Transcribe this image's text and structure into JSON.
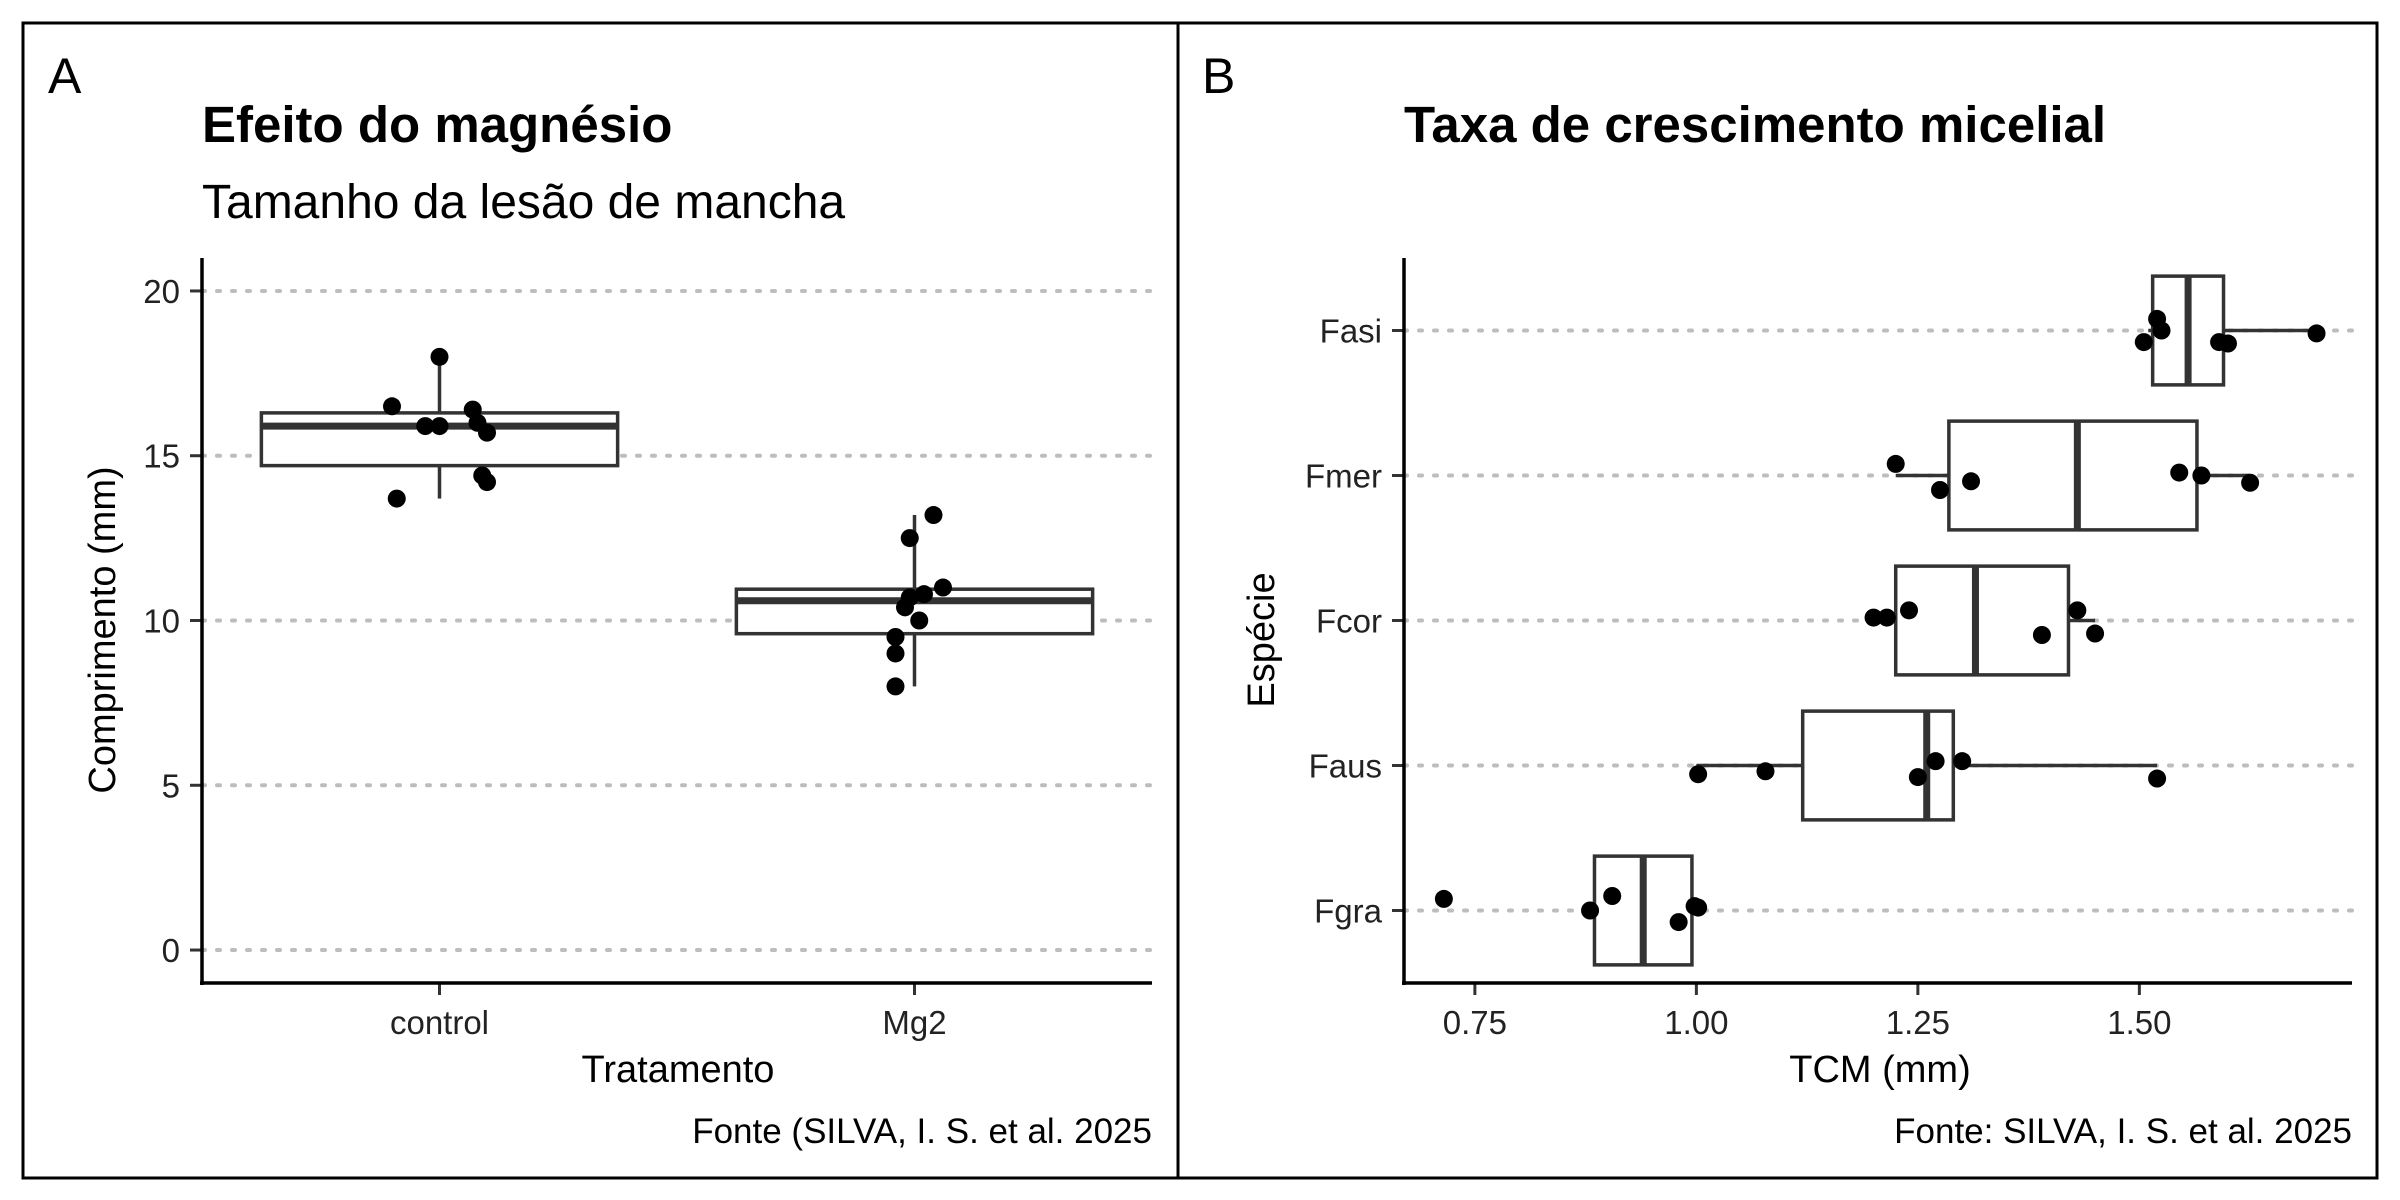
{
  "chart_data": [
    {
      "panel_tag": "A",
      "type": "box",
      "orientation": "vertical",
      "title": "Efeito do magnésio",
      "subtitle": "Tamanho da lesão de mancha",
      "xlabel": "Tratamento",
      "ylabel": "Comprimento (mm)",
      "caption": "Fonte (SILVA, I. S. et al. 2025",
      "ylim": [
        -1,
        21
      ],
      "yticks": [
        0,
        5,
        10,
        15,
        20
      ],
      "ytick_labels": [
        "0",
        "5",
        "10",
        "15",
        "20"
      ],
      "grid": "major y, dotted",
      "categories": [
        "control",
        "Mg2"
      ],
      "boxes": [
        {
          "category": "control",
          "whisker_low": 13.7,
          "q1": 14.7,
          "median": 15.9,
          "q3": 16.3,
          "whisker_high": 18.0
        },
        {
          "category": "Mg2",
          "whisker_low": 8.0,
          "q1": 9.6,
          "median": 10.6,
          "q3": 10.95,
          "whisker_high": 13.2
        }
      ],
      "points": [
        {
          "category": "control",
          "jitter": -0.1,
          "y": 16.5
        },
        {
          "category": "control",
          "jitter": -0.03,
          "y": 15.9
        },
        {
          "category": "control",
          "jitter": 0.0,
          "y": 15.9
        },
        {
          "category": "control",
          "jitter": 0.0,
          "y": 18.0
        },
        {
          "category": "control",
          "jitter": 0.07,
          "y": 16.4
        },
        {
          "category": "control",
          "jitter": 0.08,
          "y": 16.0
        },
        {
          "category": "control",
          "jitter": 0.1,
          "y": 15.7
        },
        {
          "category": "control",
          "jitter": 0.09,
          "y": 14.4
        },
        {
          "category": "control",
          "jitter": 0.1,
          "y": 14.2
        },
        {
          "category": "control",
          "jitter": -0.09,
          "y": 13.7
        },
        {
          "category": "Mg2",
          "jitter": -0.04,
          "y": 9.5
        },
        {
          "category": "Mg2",
          "jitter": -0.04,
          "y": 9.0
        },
        {
          "category": "Mg2",
          "jitter": -0.04,
          "y": 8.0
        },
        {
          "category": "Mg2",
          "jitter": -0.02,
          "y": 10.4
        },
        {
          "category": "Mg2",
          "jitter": -0.01,
          "y": 12.5
        },
        {
          "category": "Mg2",
          "jitter": -0.01,
          "y": 10.7
        },
        {
          "category": "Mg2",
          "jitter": 0.01,
          "y": 10.0
        },
        {
          "category": "Mg2",
          "jitter": 0.02,
          "y": 10.8
        },
        {
          "category": "Mg2",
          "jitter": 0.04,
          "y": 13.2
        },
        {
          "category": "Mg2",
          "jitter": 0.06,
          "y": 11.0
        }
      ]
    },
    {
      "panel_tag": "B",
      "type": "box",
      "orientation": "horizontal",
      "title": "Taxa de crescimento micelial",
      "xlabel": "TCM (mm)",
      "ylabel": "Espécie",
      "caption": "Fonte: SILVA, I. S. et al. 2025",
      "xlim": [
        0.67,
        1.74
      ],
      "xticks": [
        0.75,
        1.0,
        1.25,
        1.5
      ],
      "xtick_labels": [
        "0.75",
        "1.00",
        "1.25",
        "1.50"
      ],
      "grid": "major y, dotted",
      "categories": [
        "Fgra",
        "Faus",
        "Fcor",
        "Fmer",
        "Fasi"
      ],
      "boxes": [
        {
          "category": "Fgra",
          "whisker_low": 0.885,
          "q1": 0.885,
          "median": 0.94,
          "q3": 0.995,
          "whisker_high": 1.0
        },
        {
          "category": "Faus",
          "whisker_low": 1.0,
          "q1": 1.12,
          "median": 1.26,
          "q3": 1.29,
          "whisker_high": 1.52
        },
        {
          "category": "Fcor",
          "whisker_low": 1.2,
          "q1": 1.225,
          "median": 1.315,
          "q3": 1.42,
          "whisker_high": 1.45
        },
        {
          "category": "Fmer",
          "whisker_low": 1.225,
          "q1": 1.285,
          "median": 1.43,
          "q3": 1.565,
          "whisker_high": 1.625
        },
        {
          "category": "Fasi",
          "whisker_low": 1.51,
          "q1": 1.515,
          "median": 1.555,
          "q3": 1.595,
          "whisker_high": 1.7
        }
      ],
      "points": [
        {
          "category": "Fgra",
          "x": 0.715,
          "jitter": -0.08
        },
        {
          "category": "Fgra",
          "x": 0.88,
          "jitter": 0.0
        },
        {
          "category": "Fgra",
          "x": 0.905,
          "jitter": -0.1
        },
        {
          "category": "Fgra",
          "x": 0.98,
          "jitter": 0.08
        },
        {
          "category": "Fgra",
          "x": 0.998,
          "jitter": -0.03
        },
        {
          "category": "Fgra",
          "x": 1.002,
          "jitter": -0.02
        },
        {
          "category": "Faus",
          "x": 1.002,
          "jitter": 0.06
        },
        {
          "category": "Faus",
          "x": 1.078,
          "jitter": 0.04
        },
        {
          "category": "Faus",
          "x": 1.25,
          "jitter": 0.08
        },
        {
          "category": "Faus",
          "x": 1.27,
          "jitter": -0.03
        },
        {
          "category": "Faus",
          "x": 1.3,
          "jitter": -0.03
        },
        {
          "category": "Faus",
          "x": 1.52,
          "jitter": 0.09
        },
        {
          "category": "Fcor",
          "x": 1.2,
          "jitter": -0.02
        },
        {
          "category": "Fcor",
          "x": 1.215,
          "jitter": -0.02
        },
        {
          "category": "Fcor",
          "x": 1.24,
          "jitter": -0.07
        },
        {
          "category": "Fcor",
          "x": 1.39,
          "jitter": 0.1
        },
        {
          "category": "Fcor",
          "x": 1.43,
          "jitter": -0.07
        },
        {
          "category": "Fcor",
          "x": 1.45,
          "jitter": 0.09
        },
        {
          "category": "Fmer",
          "x": 1.225,
          "jitter": -0.08
        },
        {
          "category": "Fmer",
          "x": 1.275,
          "jitter": 0.1
        },
        {
          "category": "Fmer",
          "x": 1.31,
          "jitter": 0.04
        },
        {
          "category": "Fmer",
          "x": 1.545,
          "jitter": -0.02
        },
        {
          "category": "Fmer",
          "x": 1.57,
          "jitter": 0.0
        },
        {
          "category": "Fmer",
          "x": 1.625,
          "jitter": 0.05
        },
        {
          "category": "Fasi",
          "x": 1.505,
          "jitter": 0.08
        },
        {
          "category": "Fasi",
          "x": 1.52,
          "jitter": -0.08
        },
        {
          "category": "Fasi",
          "x": 1.525,
          "jitter": 0.0
        },
        {
          "category": "Fasi",
          "x": 1.59,
          "jitter": 0.08
        },
        {
          "category": "Fasi",
          "x": 1.6,
          "jitter": 0.09
        },
        {
          "category": "Fasi",
          "x": 1.7,
          "jitter": 0.02
        }
      ]
    }
  ]
}
